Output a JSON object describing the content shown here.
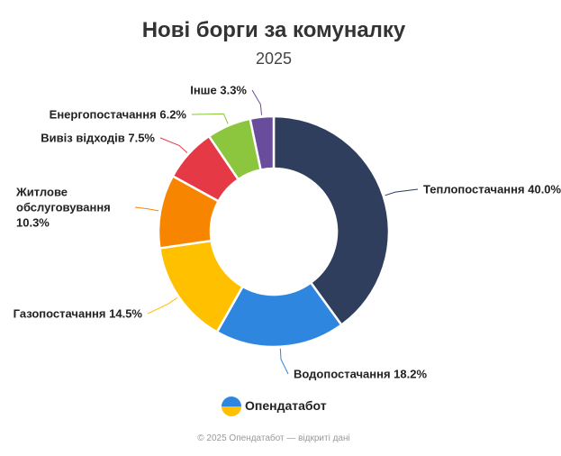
{
  "chart_data": {
    "type": "donut",
    "title": "Нові борги за комуналку",
    "subtitle": "2025",
    "categories": [
      "Теплопостачання",
      "Водопостачання",
      "Газопостачання",
      "Житлове обслуговування",
      "Вивіз відходів",
      "Енергопостачання",
      "Інше"
    ],
    "values": [
      40.0,
      18.2,
      14.5,
      10.3,
      7.5,
      6.2,
      3.3
    ],
    "value_labels": [
      "40.0%",
      "18.2%",
      "14.5%",
      "10.3%",
      "7.5%",
      "6.2%",
      "3.3%"
    ],
    "colors": [
      "#2e3e5c",
      "#2f86de",
      "#ffc000",
      "#f78500",
      "#e63946",
      "#8cc63f",
      "#6a4c9c"
    ]
  },
  "branding": {
    "logo_text": "Опендатабот",
    "footer": "© 2025 Опендатабот — відкриті дані"
  }
}
